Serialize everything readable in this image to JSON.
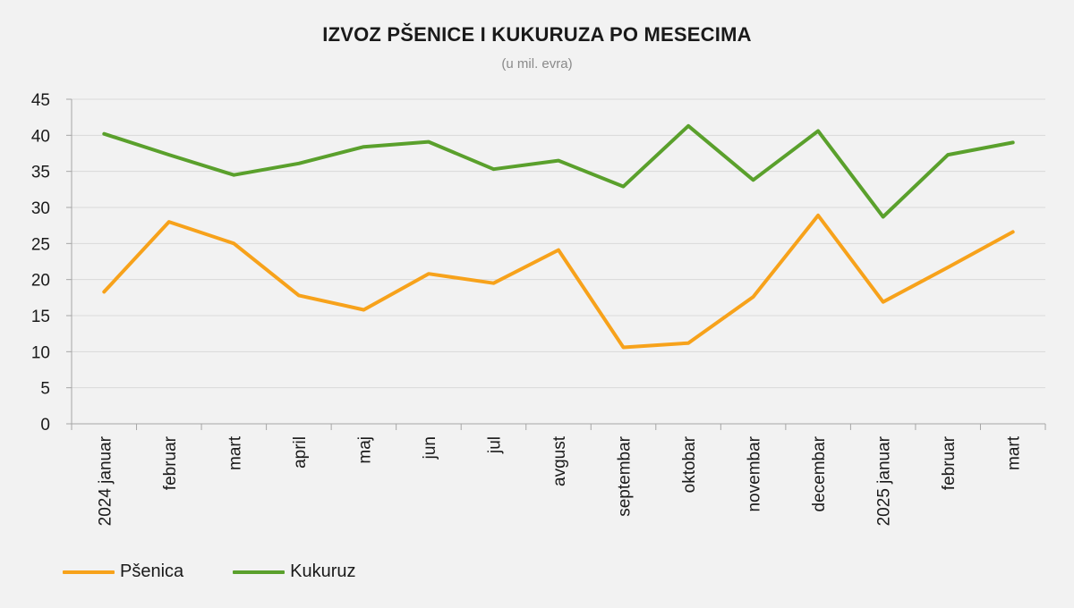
{
  "chart_data": {
    "type": "line",
    "title": "IZVOZ PŠENICE I KUKURUZA PO MESECIMA",
    "subtitle": "(u mil. evra)",
    "categories": [
      "2024 januar",
      "februar",
      "mart",
      "april",
      "maj",
      "jun",
      "jul",
      "avgust",
      "septembar",
      "oktobar",
      "novembar",
      "decembar",
      "2025 januar",
      "februar",
      "mart"
    ],
    "series": [
      {
        "name": "Pšenica",
        "color": "#f7a21b",
        "values": [
          18.3,
          28.0,
          25.0,
          17.8,
          15.8,
          20.8,
          19.5,
          24.1,
          10.6,
          11.2,
          17.6,
          28.9,
          16.9,
          21.7,
          26.6
        ]
      },
      {
        "name": "Kukuruz",
        "color": "#5aa02c",
        "values": [
          40.2,
          37.3,
          34.5,
          36.1,
          38.4,
          39.1,
          35.3,
          36.5,
          32.9,
          41.3,
          33.8,
          40.6,
          28.7,
          37.3,
          39.0
        ]
      }
    ],
    "yticks": [
      "0",
      "5",
      "10",
      "15",
      "20",
      "25",
      "30",
      "35",
      "40",
      "45"
    ],
    "ylim": [
      0,
      45
    ],
    "grid": true,
    "legend": "bottom-left"
  }
}
